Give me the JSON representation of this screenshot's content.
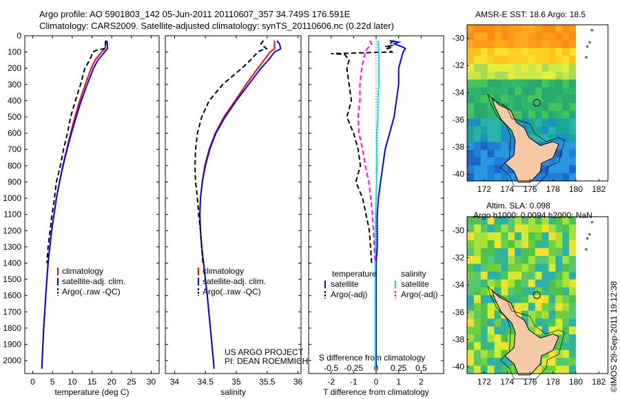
{
  "header": {
    "line1": "Argo profile: AO 5901803_142 05-Jun-2011 20110607_357 34.749S 176.591E",
    "line2": "Climatology: CARS2009. Satellite-adjusted climatology: synTS_20110606.nc (0.22d later)"
  },
  "depth_ticks": [
    0,
    100,
    200,
    300,
    400,
    500,
    600,
    700,
    800,
    900,
    1000,
    1100,
    1200,
    1300,
    1400,
    1500,
    1600,
    1700,
    1800,
    1900,
    2000
  ],
  "colors": {
    "climatology": "#ff0000",
    "satellite": "#0000ff",
    "argo": "#000000",
    "sat_s": "#00e5e5",
    "argo_s": "#ff00ff"
  },
  "chart_data": [
    {
      "type": "line",
      "xlabel": "temperature (deg C)",
      "xticks": [
        "0",
        "5",
        "10",
        "15",
        "20",
        "25",
        "30"
      ],
      "xlim": [
        -2,
        32
      ],
      "ylim": [
        2080,
        0
      ],
      "legend": {
        "climatology": "climatology",
        "satellite": "satellite-adj. clim.",
        "argo": "Argo(..raw -QC)"
      },
      "series": [
        {
          "key": "climatology",
          "color": "#ff0000",
          "depth": [
            30,
            50,
            80,
            100,
            150,
            200,
            300,
            400,
            500,
            600,
            700,
            800,
            900,
            1000,
            1200,
            1400,
            1600,
            1800,
            2000,
            2050
          ],
          "values": [
            18.6,
            18.5,
            18.3,
            17.4,
            15.8,
            14.8,
            13.3,
            11.9,
            10.7,
            9.6,
            8.6,
            7.6,
            6.8,
            6.0,
            4.8,
            3.9,
            3.3,
            2.8,
            2.4,
            2.3
          ]
        },
        {
          "key": "satellite",
          "color": "#0000ff",
          "depth": [
            30,
            50,
            80,
            100,
            150,
            200,
            300,
            400,
            500,
            600,
            700,
            800,
            900,
            1000,
            1200,
            1400,
            1600,
            1800,
            2000,
            2050
          ],
          "values": [
            18.8,
            18.9,
            18.9,
            18.2,
            16.5,
            15.4,
            13.8,
            12.3,
            11.0,
            9.8,
            8.7,
            7.7,
            6.8,
            6.0,
            4.8,
            3.9,
            3.3,
            2.8,
            2.4,
            2.3
          ]
        },
        {
          "key": "argo",
          "color": "#000000",
          "depth": [
            30,
            50,
            70,
            80,
            90,
            100,
            150,
            200,
            300,
            400,
            500,
            600,
            700,
            800,
            900,
            1000,
            1100,
            1200,
            1300,
            1400
          ],
          "values": [
            18.4,
            18.4,
            18.4,
            18.0,
            16.0,
            15.3,
            14.4,
            13.2,
            12.1,
            10.8,
            9.6,
            8.8,
            7.8,
            7.0,
            6.0,
            5.5,
            4.9,
            4.4,
            3.9,
            3.6
          ]
        }
      ],
      "footnote": []
    },
    {
      "type": "line",
      "xlabel": "salinity",
      "xticks": [
        "34",
        "34.5",
        "35",
        "35.5",
        "36"
      ],
      "xlim": [
        33.85,
        36.05
      ],
      "ylim": [
        2080,
        0
      ],
      "legend": {
        "climatology": "climatology",
        "satellite": "satellite-adj. clim.",
        "argo": "Argo(..raw -QC)"
      },
      "series": [
        {
          "key": "climatology",
          "color": "#ff0000",
          "depth": [
            30,
            50,
            80,
            100,
            150,
            200,
            300,
            400,
            500,
            600,
            700,
            800,
            900,
            1000,
            1100,
            1200,
            1300,
            1400,
            1600,
            1800,
            2000,
            2050
          ],
          "values": [
            35.62,
            35.62,
            35.62,
            35.55,
            35.45,
            35.35,
            35.16,
            34.98,
            34.8,
            34.66,
            34.56,
            34.49,
            34.45,
            34.42,
            34.41,
            34.42,
            34.44,
            34.47,
            34.53,
            34.58,
            34.63,
            34.64
          ]
        },
        {
          "key": "satellite",
          "color": "#0000ff",
          "depth": [
            30,
            50,
            80,
            100,
            150,
            200,
            300,
            400,
            500,
            600,
            700,
            800,
            900,
            1000,
            1100,
            1200,
            1300,
            1400,
            1600,
            1800,
            2000,
            2050
          ],
          "values": [
            35.66,
            35.7,
            35.72,
            35.62,
            35.52,
            35.4,
            35.2,
            35.0,
            34.82,
            34.67,
            34.57,
            34.5,
            34.45,
            34.42,
            34.41,
            34.42,
            34.44,
            34.47,
            34.53,
            34.58,
            34.63,
            34.64
          ]
        },
        {
          "key": "argo",
          "color": "#000000",
          "depth": [
            30,
            50,
            80,
            90,
            100,
            150,
            200,
            300,
            400,
            500,
            600,
            700,
            800,
            900,
            1000,
            1100,
            1200,
            1300,
            1400
          ],
          "values": [
            35.44,
            35.4,
            35.49,
            35.4,
            35.35,
            35.23,
            35.09,
            34.78,
            34.56,
            34.44,
            34.37,
            34.34,
            34.33,
            34.34,
            34.37,
            34.39,
            34.42,
            34.44,
            34.46
          ]
        }
      ],
      "footnote": [
        "US ARGO PROJECT",
        "PI: DEAN ROEMMICH"
      ]
    },
    {
      "type": "line",
      "xlabel": "T difference from climatology",
      "xlabel_top": "S difference from climatology",
      "xticks": [
        "-2",
        "-1",
        "0",
        "1",
        "2"
      ],
      "xticks_top": [
        "-0.5",
        "-0.25",
        "0",
        "0.25",
        "0.5"
      ],
      "xlim": [
        -3,
        3
      ],
      "ylim": [
        2080,
        0
      ],
      "legend_title_t": "temperature",
      "legend_title_s": "salinity",
      "legend": {
        "satellite": "satellite",
        "argo": "Argo(-adj)",
        "sat_s": "satellite",
        "argo_s": "Argo(-adj)"
      },
      "series": [
        {
          "key": "satellite",
          "color": "#0000ff",
          "depth": [
            30,
            40,
            50,
            60,
            70,
            80,
            100,
            150,
            200,
            300,
            400,
            500,
            600,
            700,
            800,
            900,
            1000,
            1100,
            1200,
            1300,
            1400,
            1600,
            1800,
            2000,
            2050
          ],
          "values": [
            0.6,
            1.0,
            0.8,
            1.0,
            1.2,
            1.3,
            1.2,
            1.1,
            1.0,
            1.0,
            0.9,
            0.8,
            0.6,
            0.4,
            0.3,
            0.2,
            0.1,
            0.05,
            0.05,
            0.05,
            0.0,
            0.0,
            0.0,
            0.0,
            0.0
          ]
        },
        {
          "key": "argo",
          "color": "#000000",
          "depth": [
            30,
            50,
            60,
            65,
            70,
            80,
            100,
            110,
            115,
            150,
            200,
            300,
            400,
            500,
            600,
            700,
            800,
            900,
            1000,
            1200,
            1400
          ],
          "values": [
            0.8,
            0.6,
            0.7,
            0.4,
            0.7,
            0.5,
            0.7,
            -2.0,
            -1.4,
            -1.2,
            -1.3,
            -1.2,
            -1.1,
            -1.3,
            -1.0,
            -0.8,
            -0.7,
            -0.9,
            -0.6,
            -0.3,
            -0.2
          ]
        },
        {
          "key": "sat_s",
          "color": "#00e5e5",
          "depth": [
            30,
            100,
            200,
            300,
            400,
            500,
            600,
            800,
            1000,
            1200,
            1400,
            1600,
            1800,
            2000,
            2050
          ],
          "values": [
            0.02,
            0.03,
            0.03,
            0.03,
            0.02,
            0.02,
            0.01,
            0.01,
            0.0,
            -0.01,
            -0.01,
            -0.01,
            -0.01,
            -0.01,
            -0.01
          ]
        },
        {
          "key": "argo_s",
          "color": "#ff00ff",
          "depth": [
            30,
            50,
            80,
            100,
            150,
            200,
            300,
            400,
            500,
            600,
            700,
            800,
            900,
            1000,
            1100,
            1200,
            1300,
            1400
          ],
          "values": [
            -0.07,
            -0.05,
            -0.1,
            -0.12,
            -0.14,
            -0.16,
            -0.18,
            -0.18,
            -0.2,
            -0.19,
            -0.15,
            -0.12,
            -0.08,
            -0.06,
            -0.04,
            -0.03,
            -0.02,
            -0.01
          ]
        }
      ],
      "footnote": []
    }
  ],
  "maps": [
    {
      "title": "AMSR-E SST: 18.6 Argo: 18.5",
      "subtitle": "",
      "yticks": [
        "-30",
        "-32",
        "-34",
        "-36",
        "-38",
        "-40"
      ],
      "xticks": [
        "172",
        "174",
        "176",
        "178",
        "180",
        "182"
      ],
      "palette": "sst"
    },
    {
      "title": "Altim. SLA: 0.098",
      "subtitle": "Argo h1000: 0.0094 h2000: NaN",
      "yticks": [
        "-30",
        "-32",
        "-34",
        "-36",
        "-38",
        "-40"
      ],
      "xticks": [
        "172",
        "174",
        "176",
        "178",
        "180",
        "182"
      ],
      "palette": "sla"
    }
  ],
  "credit": "©IMOS 29-Sep-2011 19:12:38"
}
